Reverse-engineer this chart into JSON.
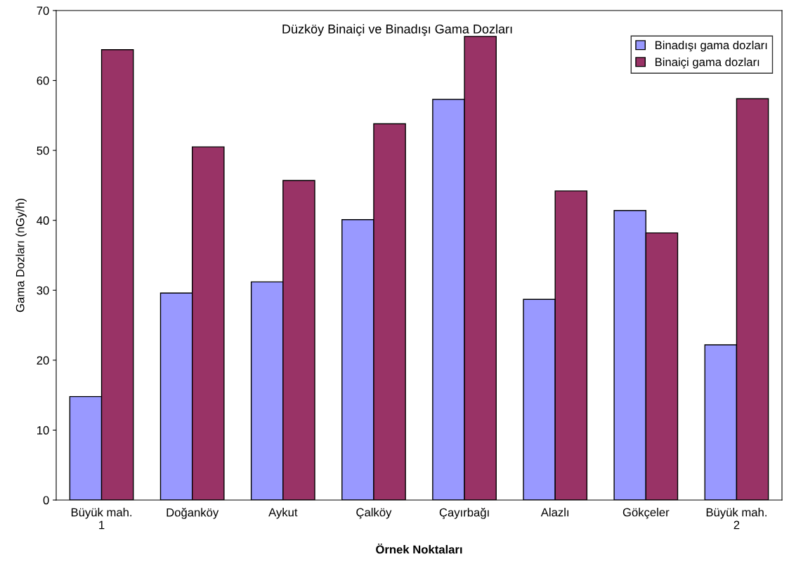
{
  "chart_data": {
    "type": "bar",
    "title": "Düzköy Binaiçi ve Binadışı Gama Dozları",
    "xlabel": "Örnek Noktaları",
    "ylabel": "Gama Dozları (nGy/h)",
    "categories": [
      "Büyük mah.\n1",
      "Doğanköy",
      "Aykut",
      "Çalköy",
      "Çayırbağı",
      "Alazlı",
      "Gökçeler",
      "Büyük mah.\n2"
    ],
    "series": [
      {
        "name": "Binadışı gama dozları",
        "color": "#9999ff",
        "values": [
          14.8,
          29.6,
          31.2,
          40.1,
          57.3,
          28.7,
          41.4,
          22.2
        ]
      },
      {
        "name": "Binaiçi gama dozları",
        "color": "#993366",
        "values": [
          64.4,
          50.5,
          45.7,
          53.8,
          66.3,
          44.2,
          38.2,
          57.4
        ]
      }
    ],
    "ylim": [
      0,
      70
    ],
    "yticks": [
      0,
      10,
      20,
      30,
      40,
      50,
      60,
      70
    ],
    "grid": false,
    "legend": "top right"
  }
}
